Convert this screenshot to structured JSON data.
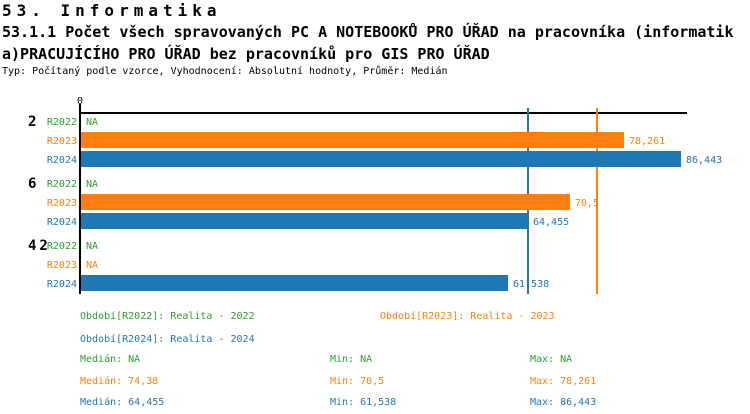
{
  "header": {
    "line1": "53. Informatika",
    "line2": "53.1.1 Počet všech spravovaných PC A NOTEBOOKŮ PRO ÚŘAD na pracovníka (informatik",
    "line3": "a)PRACUJÍCÍHO PRO ÚŘAD bez pracovníků pro GIS PRO ÚŘAD",
    "line4": "Typ: Počítaný podle vzorce, Vyhodnocení: Absolutní hodnoty, Průměr: Medián"
  },
  "colors": {
    "green": "#2ca02c",
    "orange": "#ff7f0e",
    "blue": "#1f77b4",
    "axis": "#000000"
  },
  "chart_data": {
    "type": "bar",
    "orientation": "horizontal",
    "title": "",
    "grid": false,
    "legend_position": "bottom",
    "categories": [
      "2",
      "6",
      "42"
    ],
    "series": [
      {
        "name": "R2022",
        "legend": "Období[R2022]: Realita - 2022",
        "color": "#2ca02c",
        "values": [
          null,
          null,
          null
        ],
        "display": [
          "NA",
          "NA",
          "NA"
        ],
        "median": null,
        "min": null,
        "max": null
      },
      {
        "name": "R2023",
        "legend": "Období[R2023]: Realita - 2023",
        "color": "#ff7f0e",
        "values": [
          78.261,
          70.5,
          null
        ],
        "display": [
          "78,261",
          "70,5",
          "NA"
        ],
        "median": 74.38,
        "min": 70.5,
        "max": 78.261
      },
      {
        "name": "R2024",
        "legend": "Období[R2024]: Realita - 2024",
        "color": "#1f77b4",
        "values": [
          86.443,
          64.455,
          61.538
        ],
        "display": [
          "86,443",
          "64,455",
          "61,538"
        ],
        "median": 64.455,
        "min": 61.538,
        "max": 86.443
      }
    ],
    "axis": {
      "min": 0,
      "max": 87.3,
      "ticks": [
        {
          "value": 0,
          "label": "0"
        }
      ]
    },
    "median_lines": [
      {
        "series": "R2024",
        "value": 64.455,
        "color": "#1f77b4"
      },
      {
        "series": "R2023",
        "value": 74.38,
        "color": "#ff7f0e"
      }
    ]
  },
  "stats": {
    "rows": [
      {
        "median": "Medián: NA",
        "min": "Min: NA",
        "max": "Max: NA",
        "color": "#2ca02c"
      },
      {
        "median": "Medián: 74,38",
        "min": "Min: 70,5",
        "max": "Max: 78,261",
        "color": "#ff7f0e"
      },
      {
        "median": "Medián: 64,455",
        "min": "Min: 61,538",
        "max": "Max: 86,443",
        "color": "#1f77b4"
      }
    ]
  }
}
